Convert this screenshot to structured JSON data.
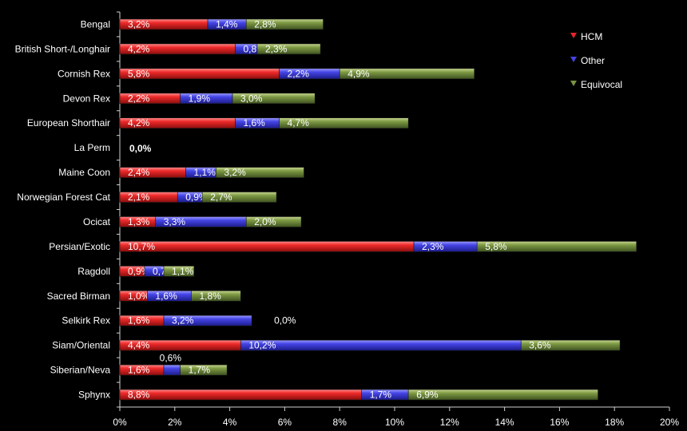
{
  "chart_data": {
    "type": "bar",
    "orientation": "horizontal",
    "stacked": true,
    "categories": [
      "Bengal",
      "British Short-/Longhair",
      "Cornish Rex",
      "Devon Rex",
      "European Shorthair",
      "La Perm",
      "Maine Coon",
      "Norwegian Forest Cat",
      "Ocicat",
      "Persian/Exotic",
      "Ragdoll",
      "Sacred Birman",
      "Selkirk Rex",
      "Siam/Oriental",
      "Siberian/Neva",
      "Sphynx"
    ],
    "series": [
      {
        "name": "HCM",
        "color": "#e8242b",
        "values": [
          3.2,
          4.2,
          5.8,
          2.2,
          4.2,
          0.0,
          2.4,
          2.1,
          1.3,
          10.7,
          0.9,
          1.0,
          1.6,
          4.4,
          1.6,
          8.8
        ],
        "labels": [
          "3,2%",
          "4,2%",
          "5,8%",
          "2,2%",
          "4,2%",
          "0,0%",
          "2,4%",
          "2,1%",
          "1,3%",
          "10,7%",
          "0,9%",
          "1,0%",
          "1,6%",
          "4,4%",
          "1,6%",
          "8,8%"
        ]
      },
      {
        "name": "Other",
        "color": "#4343e0",
        "values": [
          1.4,
          0.8,
          2.2,
          1.9,
          1.6,
          0.0,
          1.1,
          0.9,
          3.3,
          2.3,
          0.7,
          1.6,
          3.2,
          10.2,
          0.6,
          1.7
        ],
        "labels": [
          "1,4%",
          "0,8%",
          "2,2%",
          "1,9%",
          "1,6%",
          "",
          "1,1%",
          "0,9%",
          "3,3%",
          "2,3%",
          "0,7%",
          "1,6%",
          "3,2%",
          "10,2%",
          "0,6%",
          "1,7%"
        ]
      },
      {
        "name": "Equivocal",
        "color": "#7a9440",
        "values": [
          2.8,
          2.3,
          4.9,
          3.0,
          4.7,
          0.0,
          3.2,
          2.7,
          2.0,
          5.8,
          1.1,
          1.8,
          0.0,
          3.6,
          1.7,
          6.9
        ],
        "labels": [
          "2,8%",
          "2,3%",
          "4,9%",
          "3,0%",
          "4,7%",
          "",
          "3,2%",
          "2,7%",
          "2,0%",
          "5,8%",
          "1,1%",
          "1,8%",
          "0,0%",
          "3,6%",
          "1,7%",
          "6,9%"
        ]
      }
    ],
    "xlim": [
      0,
      20
    ],
    "xticks": [
      "0%",
      "2%",
      "4%",
      "6%",
      "8%",
      "10%",
      "12%",
      "14%",
      "16%",
      "18%",
      "20%"
    ],
    "title": "",
    "xlabel": "",
    "ylabel": "",
    "grid": false,
    "legend": "top-right"
  }
}
